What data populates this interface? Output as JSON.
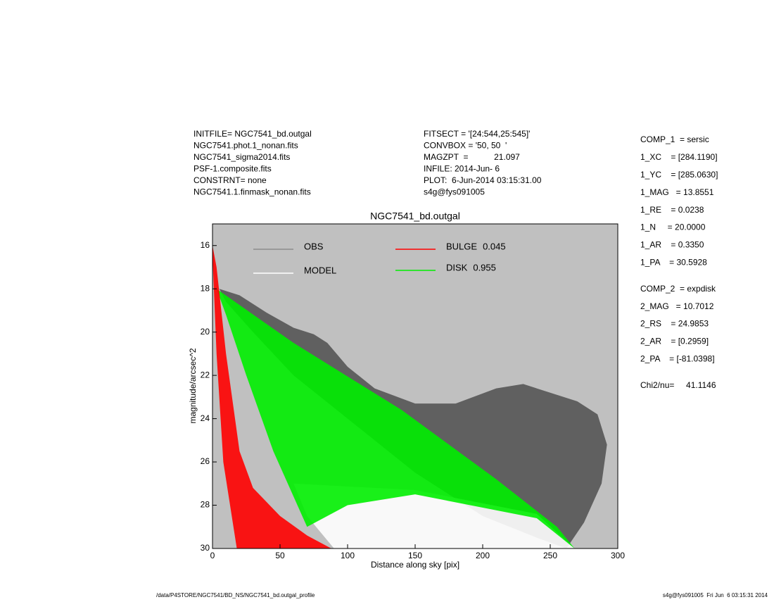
{
  "info": {
    "left": [
      "INITFILE= NGC7541_bd.outgal",
      "NGC7541.phot.1_nonan.fits",
      "NGC7541_sigma2014.fits",
      "PSF-1.composite.fits",
      "CONSTRNT= none",
      "NGC7541.1.finmask_nonan.fits"
    ],
    "middle": [
      "FITSECT = '[24:544,25:545]'",
      "CONVBOX = '50, 50  '",
      "MAGZPT  =           21.097",
      "INFILE: 2014-Jun- 6",
      "PLOT:  6-Jun-2014 03:15:31.00",
      "s4g@fys091005"
    ],
    "params": [
      [
        "COMP_1  = sersic",
        "1_XC    = [284.1190]",
        "1_YC    = [285.0630]",
        "1_MAG   = 13.8551",
        "1_RE    = 0.0238",
        "1_N     = 20.0000",
        "1_AR    = 0.3350",
        "1_PA    = 30.5928"
      ],
      [
        "COMP_2  = expdisk",
        "2_MAG   = 10.7012",
        "2_RS    = 24.9853",
        "2_AR    = [0.2959]",
        "2_PA    = [-81.0398]"
      ],
      [
        "Chi2/nu=     41.1146"
      ]
    ],
    "footer_left": "/data/P4STORE/NGC7541/BD_NS/NGC7541_bd.outgal_profile",
    "footer_right": "s4g@fys091005  Fri Jun  6 03:15:31 2014"
  },
  "chart_data": {
    "type": "area",
    "title": "NGC7541_bd.outgal",
    "x_label": "Distance along sky [pix]",
    "y_label": "magnitude/arcsec^2",
    "xlim": [
      0,
      300
    ],
    "xticks": [
      0,
      50,
      100,
      150,
      200,
      250,
      300
    ],
    "ylim": [
      15,
      30
    ],
    "yticks": [
      16,
      18,
      20,
      22,
      24,
      26,
      28,
      30
    ],
    "y_inverted": true,
    "series": [
      {
        "name": "OBS",
        "color": "#555555",
        "legend_color": "#8c8c8c",
        "x": [
          5,
          20,
          40,
          60,
          75,
          85,
          100,
          120,
          150,
          180,
          210,
          230,
          250,
          270,
          285,
          292,
          288,
          275,
          262,
          240,
          200,
          150,
          100,
          60,
          30,
          10
        ],
        "y": [
          18,
          18.3,
          19.1,
          19.8,
          20.1,
          20.5,
          21.6,
          22.6,
          23.3,
          23.3,
          22.6,
          22.4,
          22.8,
          23.2,
          23.8,
          25.2,
          27,
          28.8,
          30,
          29.5,
          28.5,
          26.5,
          24,
          22,
          20,
          18.6
        ]
      },
      {
        "name": "MODEL",
        "color": "#ffffff",
        "legend_color": "#ffffff",
        "x": [
          60,
          150,
          240,
          268,
          90,
          70
        ],
        "y": [
          27,
          27.3,
          28.4,
          30,
          30,
          28.5
        ]
      },
      {
        "name": "DISK",
        "fraction": 0.955,
        "color": "#00ee00",
        "legend_color": "#00ee00",
        "x": [
          3,
          60,
          140,
          210,
          255,
          268,
          240,
          150,
          100,
          70,
          45,
          25,
          10
        ],
        "y": [
          18,
          20.5,
          23.6,
          26.8,
          29,
          30,
          28.6,
          27.5,
          28,
          29,
          25.5,
          22,
          19.2
        ]
      },
      {
        "name": "BULGE",
        "fraction": 0.045,
        "color": "#ff0000",
        "legend_color": "#ff0000",
        "x": [
          0,
          3,
          10,
          20,
          30,
          50,
          70,
          88,
          18,
          8,
          3,
          0
        ],
        "y": [
          16,
          17,
          21,
          25.5,
          27.2,
          28.5,
          29.4,
          30,
          30,
          26,
          21,
          16.5
        ]
      }
    ]
  }
}
